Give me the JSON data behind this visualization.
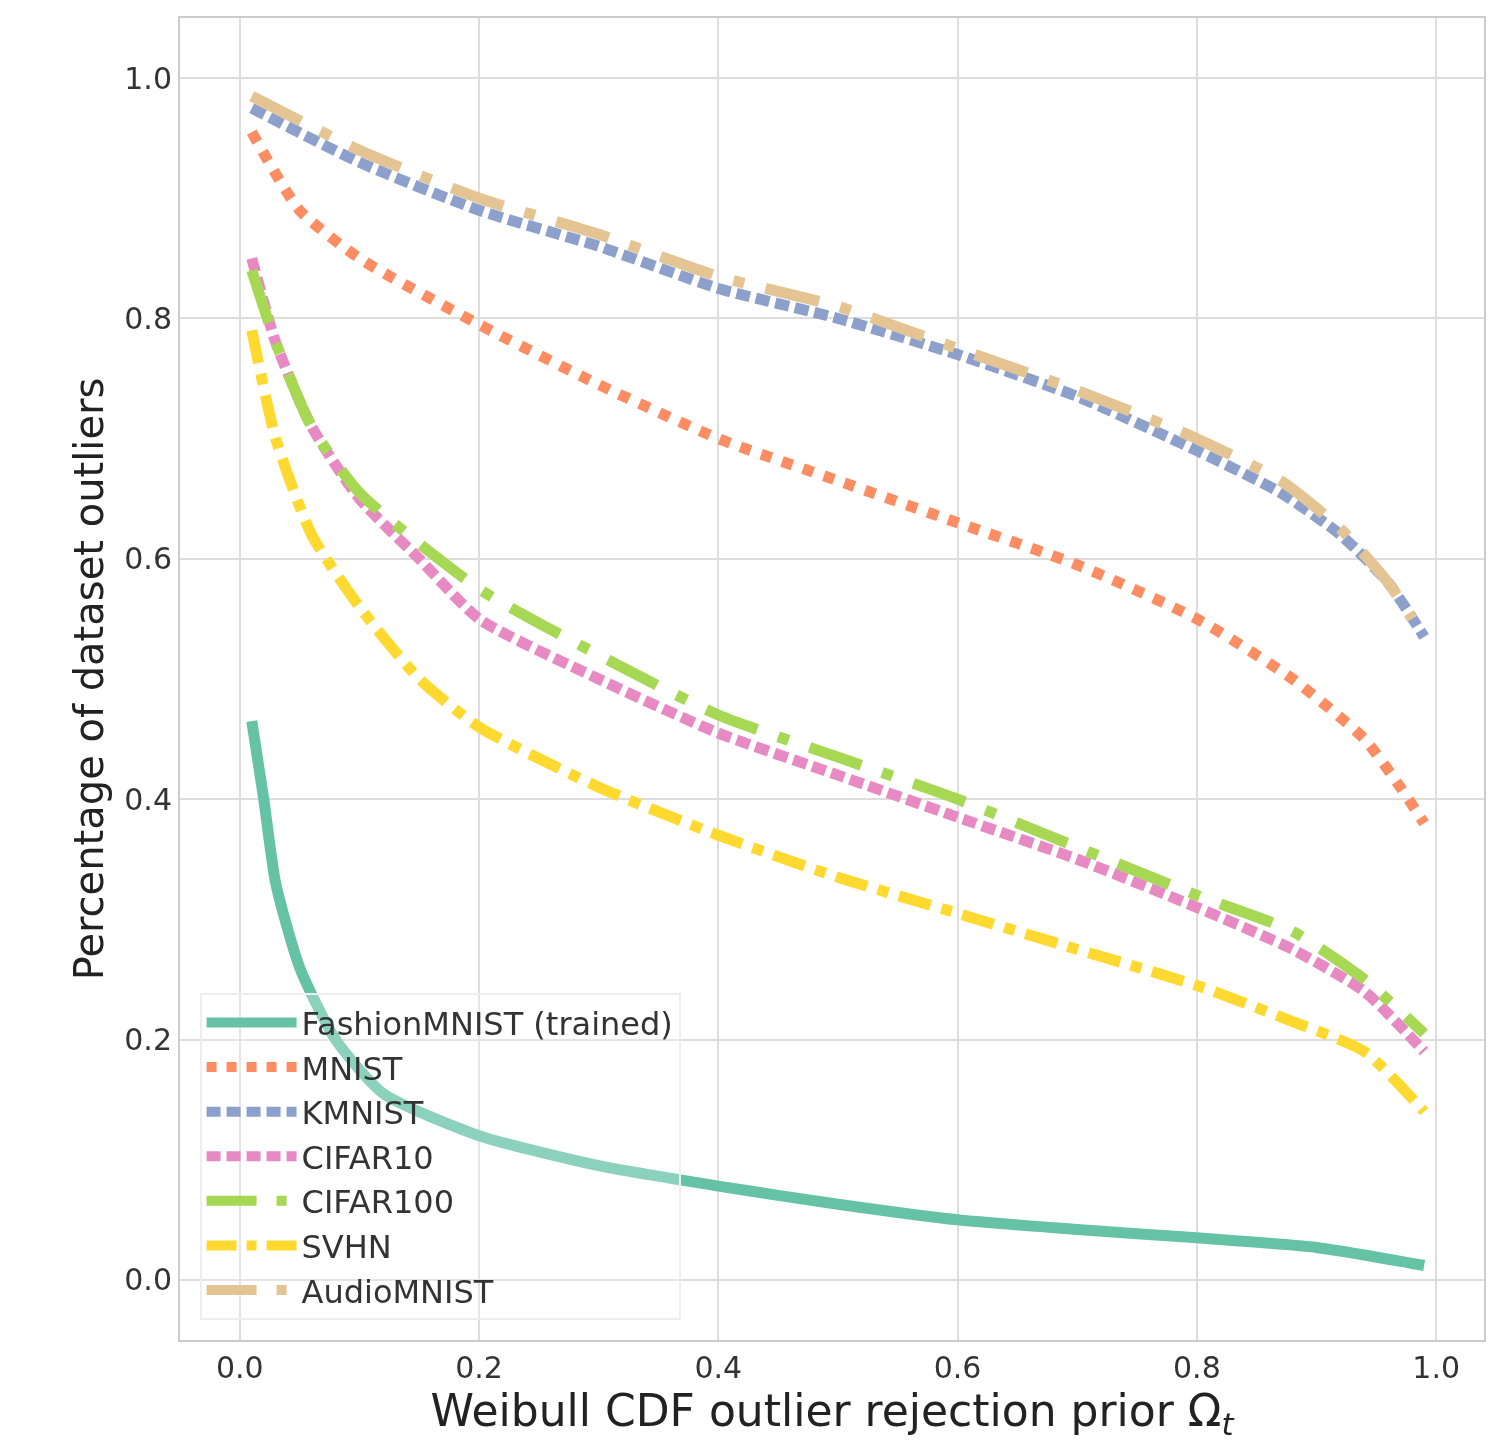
{
  "chart_data": {
    "type": "line",
    "xlabel": "Weibull CDF outlier rejection prior Ω$_{t}$",
    "ylabel": "Percentage of dataset outliers",
    "xlim": [
      -0.05,
      1.04
    ],
    "ylim": [
      -0.05,
      1.05
    ],
    "xticks": [
      {
        "value": 0,
        "label": "0.0"
      },
      0.2,
      0.4,
      0.6,
      0.8,
      {
        "value": 1,
        "label": "1.0"
      }
    ],
    "yticks": [
      {
        "value": 0,
        "label": "0.0"
      },
      0.2,
      0.4,
      0.6,
      0.8,
      {
        "value": 1,
        "label": "1.0"
      }
    ],
    "grid": true,
    "legend": "bottom left",
    "series": [
      {
        "name": "FashionMNIST (trained)",
        "color": "#66c2a5",
        "line_style": "solid",
        "x": [
          0.01,
          0.02,
          0.03,
          0.05,
          0.08,
          0.12,
          0.2,
          0.3,
          0.4,
          0.5,
          0.6,
          0.7,
          0.8,
          0.9,
          0.99
        ],
        "values": [
          0.465,
          0.4,
          0.33,
          0.26,
          0.2,
          0.155,
          0.12,
          0.095,
          0.078,
          0.063,
          0.05,
          0.042,
          0.035,
          0.027,
          0.012
        ]
      },
      {
        "name": "MNIST",
        "color": "#fc8d62",
        "line_style": "dotted",
        "x": [
          0.01,
          0.05,
          0.1,
          0.2,
          0.3,
          0.4,
          0.5,
          0.6,
          0.7,
          0.8,
          0.88,
          0.94,
          0.97,
          0.99
        ],
        "values": [
          0.955,
          0.89,
          0.85,
          0.795,
          0.745,
          0.7,
          0.665,
          0.63,
          0.595,
          0.55,
          0.5,
          0.45,
          0.41,
          0.38
        ]
      },
      {
        "name": "KMNIST",
        "color": "#8da0cb",
        "line_style": "dashed",
        "x": [
          0.01,
          0.1,
          0.2,
          0.3,
          0.4,
          0.5,
          0.6,
          0.7,
          0.8,
          0.87,
          0.92,
          0.96,
          0.99
        ],
        "values": [
          0.975,
          0.93,
          0.89,
          0.86,
          0.825,
          0.8,
          0.77,
          0.735,
          0.69,
          0.655,
          0.62,
          0.58,
          0.535
        ]
      },
      {
        "name": "CIFAR10",
        "color": "#e78ac3",
        "line_style": "dashed",
        "x": [
          0.01,
          0.03,
          0.06,
          0.1,
          0.15,
          0.2,
          0.3,
          0.4,
          0.5,
          0.6,
          0.7,
          0.8,
          0.88,
          0.94,
          0.99
        ],
        "values": [
          0.85,
          0.78,
          0.71,
          0.65,
          0.6,
          0.55,
          0.5,
          0.455,
          0.42,
          0.385,
          0.35,
          0.31,
          0.275,
          0.24,
          0.19
        ]
      },
      {
        "name": "CIFAR100",
        "color": "#a6d854",
        "line_style": "longdashdot",
        "x": [
          0.01,
          0.03,
          0.06,
          0.1,
          0.2,
          0.3,
          0.4,
          0.5,
          0.6,
          0.7,
          0.8,
          0.88,
          0.94,
          0.99
        ],
        "values": [
          0.84,
          0.78,
          0.71,
          0.655,
          0.575,
          0.52,
          0.47,
          0.435,
          0.4,
          0.36,
          0.32,
          0.29,
          0.25,
          0.205
        ]
      },
      {
        "name": "SVHN",
        "color": "#ffd92f",
        "line_style": "dashdot",
        "x": [
          0.01,
          0.03,
          0.06,
          0.1,
          0.15,
          0.2,
          0.3,
          0.4,
          0.5,
          0.6,
          0.7,
          0.8,
          0.88,
          0.94,
          0.99
        ],
        "values": [
          0.79,
          0.7,
          0.62,
          0.56,
          0.5,
          0.46,
          0.41,
          0.37,
          0.335,
          0.305,
          0.275,
          0.245,
          0.215,
          0.19,
          0.14
        ]
      },
      {
        "name": "AudioMNIST",
        "color": "#e5c494",
        "line_style": "longdashdot",
        "x": [
          0.01,
          0.1,
          0.2,
          0.3,
          0.4,
          0.5,
          0.6,
          0.7,
          0.8,
          0.87,
          0.92,
          0.96,
          0.98
        ],
        "values": [
          0.985,
          0.94,
          0.9,
          0.87,
          0.835,
          0.81,
          0.775,
          0.74,
          0.7,
          0.665,
          0.625,
          0.58,
          0.55
        ]
      }
    ]
  }
}
